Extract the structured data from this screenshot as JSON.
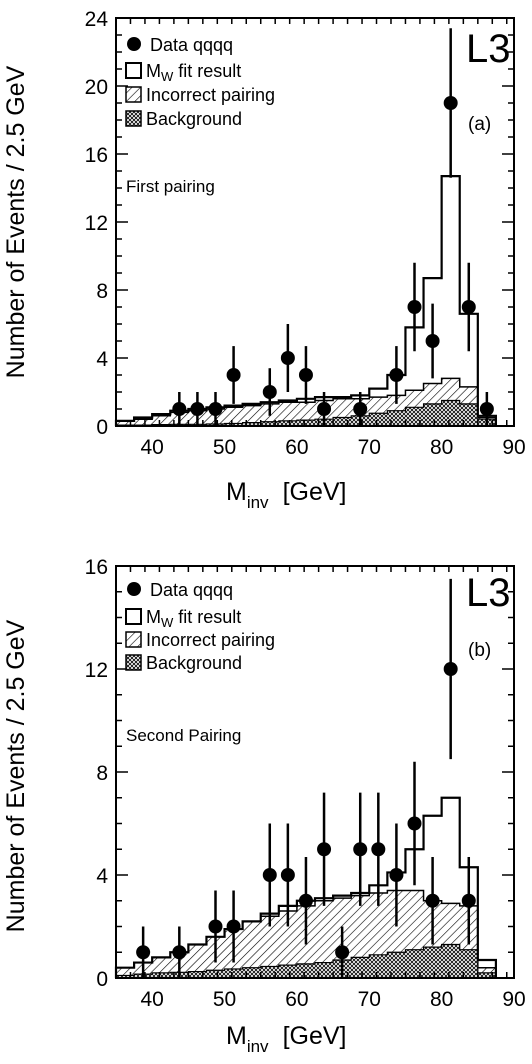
{
  "chart_data": [
    {
      "type": "histogram",
      "panel_label": "(a)",
      "experiment_label": "L3",
      "annotation": "First pairing",
      "xlabel": "M",
      "xlabel_sub": "inv",
      "xlabel_unit": "[GeV]",
      "ylabel": "Number of Events / 2.5 GeV",
      "xlim": [
        35,
        90
      ],
      "ylim": [
        0,
        24
      ],
      "x_ticks": [
        40,
        50,
        60,
        70,
        80,
        90
      ],
      "y_ticks": [
        0,
        4,
        8,
        12,
        16,
        20,
        24
      ],
      "legend": {
        "data": "Data qqqq",
        "fit_prefix": "M",
        "fit_sub": "W",
        "fit_suffix": " fit result",
        "incorrect": "Incorrect pairing",
        "background": "Background"
      },
      "bin_edges": [
        35,
        37.5,
        40,
        42.5,
        45,
        47.5,
        50,
        52.5,
        55,
        57.5,
        60,
        62.5,
        65,
        67.5,
        70,
        72.5,
        75,
        77.5,
        80,
        82.5,
        85,
        87.5
      ],
      "fit_result": [
        0.3,
        0.5,
        0.7,
        0.9,
        1.0,
        1.1,
        1.2,
        1.3,
        1.4,
        1.5,
        1.6,
        1.7,
        1.7,
        1.8,
        2.2,
        3.0,
        5.8,
        8.7,
        14.7,
        6.6,
        0.6
      ],
      "incorrect_pairing": [
        0.3,
        0.4,
        0.6,
        0.8,
        0.9,
        1.0,
        1.1,
        1.2,
        1.3,
        1.4,
        1.4,
        1.5,
        1.6,
        1.6,
        1.7,
        1.8,
        2.1,
        2.5,
        2.8,
        2.3,
        0.5
      ],
      "background": [
        0.05,
        0.05,
        0.08,
        0.1,
        0.1,
        0.12,
        0.15,
        0.2,
        0.25,
        0.3,
        0.35,
        0.4,
        0.5,
        0.6,
        0.75,
        0.9,
        1.1,
        1.3,
        1.5,
        1.3,
        0.4
      ],
      "data_points": [
        {
          "x": 43.75,
          "y": 1,
          "err": 1.0
        },
        {
          "x": 46.25,
          "y": 1,
          "err": 1.0
        },
        {
          "x": 48.75,
          "y": 1,
          "err": 1.0
        },
        {
          "x": 51.25,
          "y": 3,
          "err": 1.7
        },
        {
          "x": 56.25,
          "y": 2,
          "err": 1.4
        },
        {
          "x": 58.75,
          "y": 4,
          "err": 2.0
        },
        {
          "x": 61.25,
          "y": 3,
          "err": 1.7
        },
        {
          "x": 63.75,
          "y": 1,
          "err": 1.0
        },
        {
          "x": 68.75,
          "y": 1,
          "err": 1.0
        },
        {
          "x": 73.75,
          "y": 3,
          "err": 1.7
        },
        {
          "x": 76.25,
          "y": 7,
          "err": 2.6
        },
        {
          "x": 78.75,
          "y": 5,
          "err": 2.2
        },
        {
          "x": 81.25,
          "y": 19,
          "err": 4.4
        },
        {
          "x": 83.75,
          "y": 7,
          "err": 2.6
        },
        {
          "x": 86.25,
          "y": 1,
          "err": 1.0
        }
      ]
    },
    {
      "type": "histogram",
      "panel_label": "(b)",
      "experiment_label": "L3",
      "annotation": "Second Pairing",
      "xlabel": "M",
      "xlabel_sub": "inv",
      "xlabel_unit": "[GeV]",
      "ylabel": "Number of Events / 2.5 GeV",
      "xlim": [
        35,
        90
      ],
      "ylim": [
        0,
        16
      ],
      "x_ticks": [
        40,
        50,
        60,
        70,
        80,
        90
      ],
      "y_ticks": [
        0,
        4,
        8,
        12,
        16
      ],
      "legend": {
        "data": "Data qqqq",
        "fit_prefix": "M",
        "fit_sub": "W",
        "fit_suffix": " fit result",
        "incorrect": "Incorrect pairing",
        "background": "Background"
      },
      "bin_edges": [
        35,
        37.5,
        40,
        42.5,
        45,
        47.5,
        50,
        52.5,
        55,
        57.5,
        60,
        62.5,
        65,
        67.5,
        70,
        72.5,
        75,
        77.5,
        80,
        82.5,
        85,
        87.5
      ],
      "fit_result": [
        0.4,
        0.6,
        0.8,
        1.0,
        1.3,
        1.6,
        1.9,
        2.2,
        2.5,
        2.8,
        3.0,
        3.1,
        3.2,
        3.3,
        3.6,
        4.1,
        5.0,
        6.3,
        7.0,
        4.3,
        0.7
      ],
      "incorrect_pairing": [
        0.4,
        0.6,
        0.8,
        1.0,
        1.3,
        1.6,
        1.9,
        2.2,
        2.4,
        2.6,
        2.8,
        3.0,
        3.1,
        3.2,
        3.3,
        3.4,
        3.4,
        3.0,
        2.9,
        2.8,
        0.4
      ],
      "background": [
        0.1,
        0.15,
        0.2,
        0.22,
        0.25,
        0.3,
        0.35,
        0.4,
        0.45,
        0.5,
        0.55,
        0.6,
        0.7,
        0.8,
        0.9,
        1.0,
        1.1,
        1.2,
        1.3,
        1.1,
        0.2
      ],
      "data_points": [
        {
          "x": 38.75,
          "y": 1,
          "err": 1.0
        },
        {
          "x": 43.75,
          "y": 1,
          "err": 1.0
        },
        {
          "x": 48.75,
          "y": 2,
          "err": 1.4
        },
        {
          "x": 51.25,
          "y": 2,
          "err": 1.4
        },
        {
          "x": 56.25,
          "y": 4,
          "err": 2.0
        },
        {
          "x": 58.75,
          "y": 4,
          "err": 2.0
        },
        {
          "x": 61.25,
          "y": 3,
          "err": 1.7
        },
        {
          "x": 63.75,
          "y": 5,
          "err": 2.2
        },
        {
          "x": 66.25,
          "y": 1,
          "err": 1.0
        },
        {
          "x": 68.75,
          "y": 5,
          "err": 2.2
        },
        {
          "x": 71.25,
          "y": 5,
          "err": 2.2
        },
        {
          "x": 73.75,
          "y": 4,
          "err": 2.0
        },
        {
          "x": 76.25,
          "y": 6,
          "err": 2.4
        },
        {
          "x": 78.75,
          "y": 3,
          "err": 1.7
        },
        {
          "x": 81.25,
          "y": 12,
          "err": 3.5
        },
        {
          "x": 83.75,
          "y": 3,
          "err": 1.7
        }
      ]
    }
  ]
}
